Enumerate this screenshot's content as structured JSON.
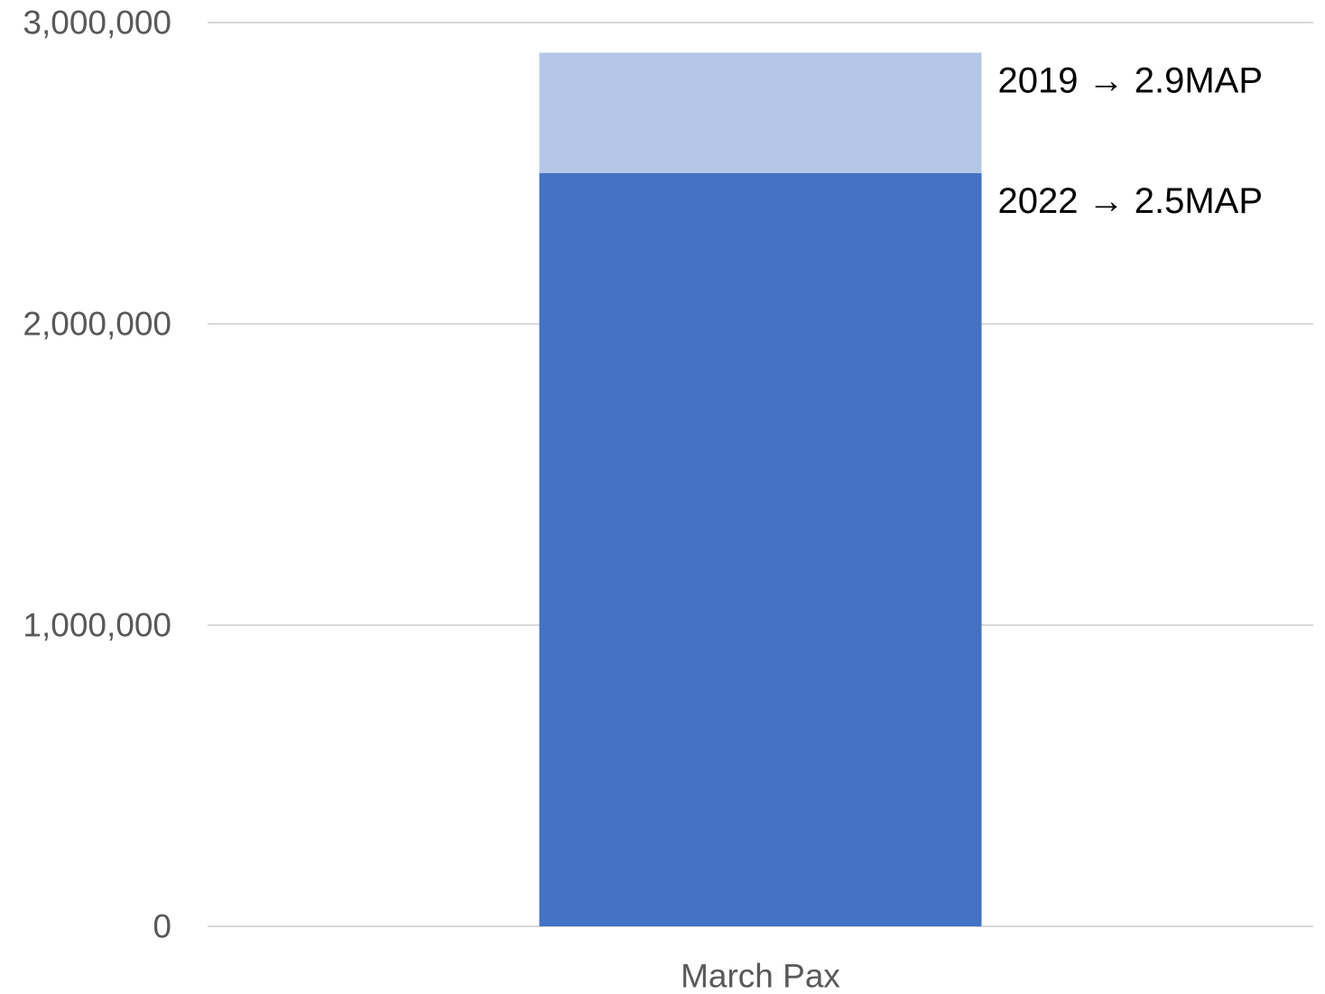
{
  "chart_data": {
    "type": "bar",
    "categories": [
      "March Pax"
    ],
    "series": [
      {
        "values": [
          2500000
        ],
        "color": "#4472C4"
      },
      {
        "values": [
          2900000
        ],
        "color": "#B4C7E7"
      }
    ],
    "ylim": [
      0,
      3000000
    ],
    "y_ticks": [
      0,
      1000000,
      2000000,
      3000000
    ],
    "y_tick_labels": [
      "0",
      "1,000,000",
      "2,000,000",
      "3,000,000"
    ],
    "grid": true,
    "gridline_color": "#D9D9D9",
    "annotations": [
      {
        "text": "2019 → 2.9MAP",
        "y": 2900000
      },
      {
        "text": "2022 → 2.5MAP",
        "y": 2500000
      }
    ],
    "title": "",
    "xlabel": "",
    "ylabel": ""
  }
}
